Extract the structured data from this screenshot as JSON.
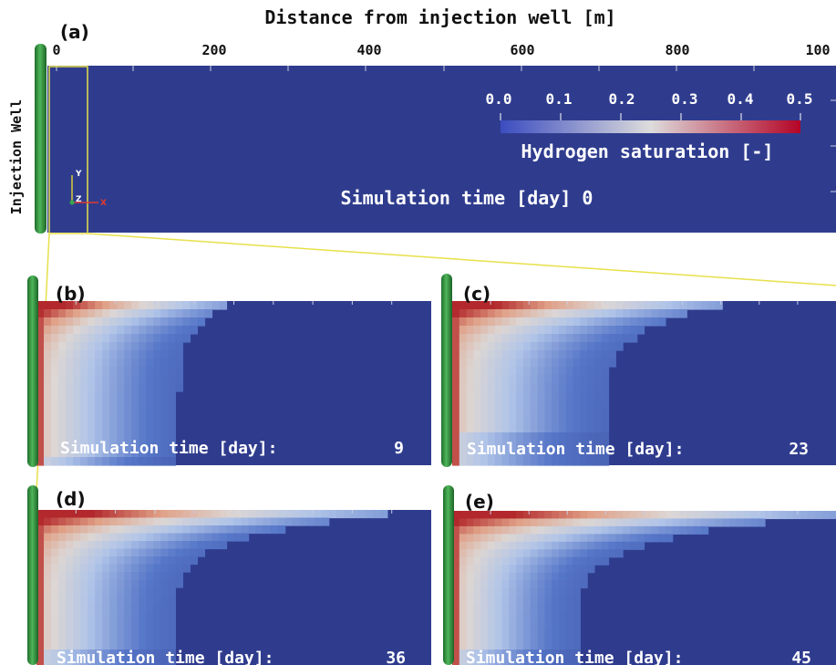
{
  "colors": {
    "background": "#2f3c8e",
    "saturation_high": "#b3282c",
    "saturation_mid": "#d9d9dc",
    "well": "#2d8a3a",
    "zoom_lines": "#e7e04a",
    "axis_x": "#e23a2f",
    "axis_y": "#d9c936",
    "axis_z": "#35a84a"
  },
  "panel_a": {
    "label": "(a)",
    "axis_title": "Distance from injection well [m]",
    "ticks": [
      "0",
      "200",
      "400",
      "600",
      "800",
      "100"
    ],
    "well_label": "Injection Well",
    "colorbar": {
      "title": "Hydrogen saturation [-]",
      "tick_labels": [
        "0.0",
        "0.1",
        "0.2",
        "0.3",
        "0.4",
        "0.5"
      ],
      "range": [
        0.0,
        0.5
      ]
    },
    "time_caption": "Simulation time [day] 0",
    "orientation": {
      "y": "Y",
      "z": "Z",
      "x": "X"
    }
  },
  "panels": [
    {
      "id": "b",
      "label": "(b)",
      "caption": "Simulation time [day]:",
      "day": "9",
      "front_reach": 0.36,
      "top_reach": 0.48,
      "front_depth": 0.05
    },
    {
      "id": "c",
      "label": "(c)",
      "caption": "Simulation time [day]:",
      "day": "23",
      "front_reach": 0.4,
      "top_reach": 0.7,
      "front_depth": 0.18
    },
    {
      "id": "d",
      "label": "(d)",
      "caption": "Simulation time [day]:",
      "day": "36",
      "front_reach": 0.35,
      "top_reach": 0.88,
      "front_depth": 0.1
    },
    {
      "id": "e",
      "label": "(e)",
      "caption": "Simulation time [day]:",
      "day": "45",
      "front_reach": 0.33,
      "top_reach": 1.0,
      "front_depth": 0.08
    }
  ]
}
